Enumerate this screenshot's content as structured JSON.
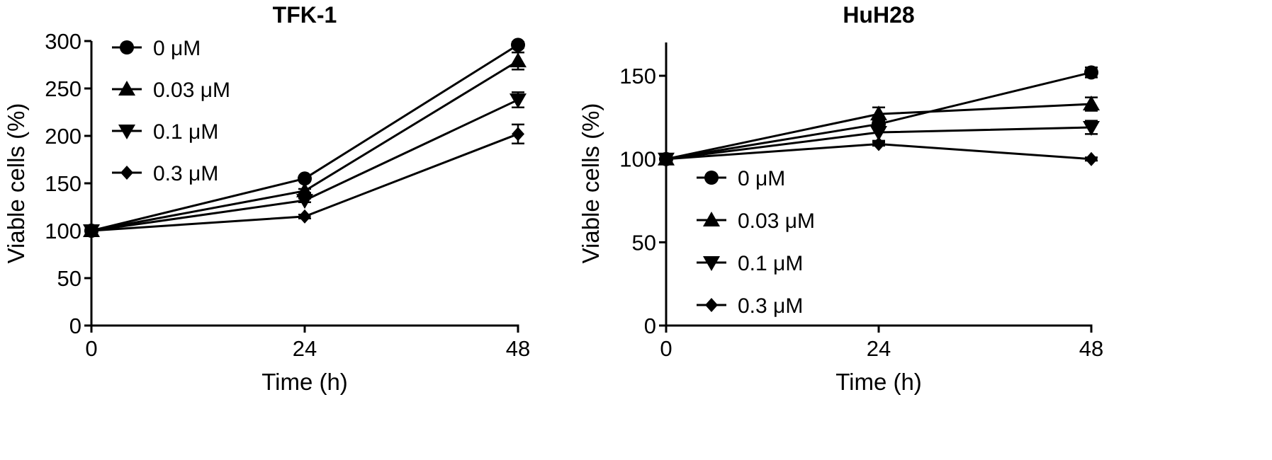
{
  "chart_data": [
    {
      "type": "line",
      "title": "TFK-1",
      "xlabel": "Time (h)",
      "ylabel": "Viable cells (%)",
      "x": [
        0,
        24,
        48
      ],
      "xticks": [
        "0",
        "24",
        "48"
      ],
      "xlim": [
        0,
        48
      ],
      "ylim": [
        0,
        300
      ],
      "yticks": [
        "0",
        "50",
        "100",
        "150",
        "200",
        "250",
        "300"
      ],
      "grid": false,
      "legend_position": "top-left",
      "series": [
        {
          "name": "0 μM",
          "marker": "circle",
          "values": [
            100,
            155,
            296
          ],
          "errors": [
            0,
            2,
            3
          ]
        },
        {
          "name": "0.03 μM",
          "marker": "triangle-up",
          "values": [
            100,
            142,
            279
          ],
          "errors": [
            0,
            2,
            9
          ]
        },
        {
          "name": "0.1 μM",
          "marker": "triangle-down",
          "values": [
            100,
            132,
            238
          ],
          "errors": [
            0,
            2,
            8
          ]
        },
        {
          "name": "0.3 μM",
          "marker": "diamond",
          "values": [
            100,
            115,
            202
          ],
          "errors": [
            0,
            2,
            10
          ]
        }
      ]
    },
    {
      "type": "line",
      "title": "HuH28",
      "xlabel": "Time (h)",
      "ylabel": "Viable cells (%)",
      "x": [
        0,
        24,
        48
      ],
      "xticks": [
        "0",
        "24",
        "48"
      ],
      "xlim": [
        0,
        48
      ],
      "ylim": [
        0,
        170
      ],
      "yticks": [
        "0",
        "50",
        "100",
        "150"
      ],
      "grid": false,
      "legend_position": "bottom-left",
      "series": [
        {
          "name": "0 μM",
          "marker": "circle",
          "values": [
            100,
            121,
            152
          ],
          "errors": [
            0,
            3,
            3
          ]
        },
        {
          "name": "0.03 μM",
          "marker": "triangle-up",
          "values": [
            100,
            127,
            133
          ],
          "errors": [
            0,
            4,
            4
          ]
        },
        {
          "name": "0.1 μM",
          "marker": "triangle-down",
          "values": [
            100,
            116,
            119
          ],
          "errors": [
            0,
            5,
            4
          ]
        },
        {
          "name": "0.3 μM",
          "marker": "diamond",
          "values": [
            100,
            109,
            100
          ],
          "errors": [
            0,
            1,
            1
          ]
        }
      ]
    }
  ]
}
